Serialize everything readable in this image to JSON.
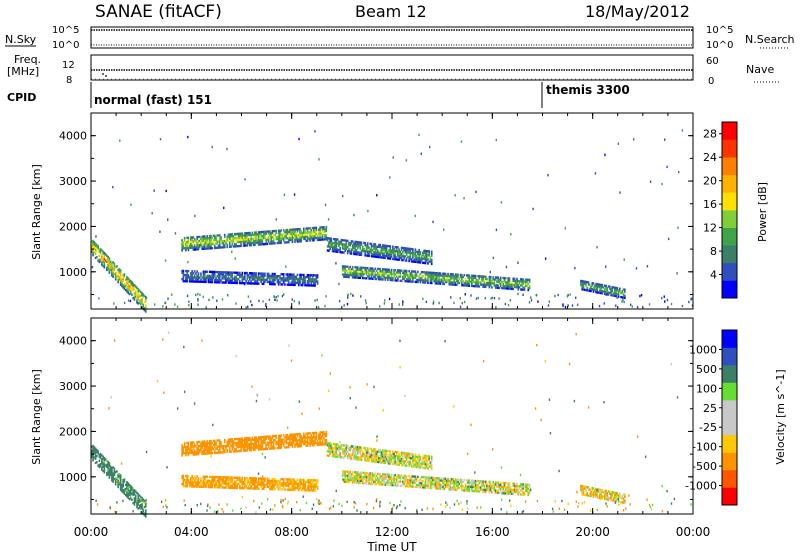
{
  "header": {
    "station": "SANAE (fitACF)",
    "beam": "Beam 12",
    "date": "18/May/2012"
  },
  "strip_noise": {
    "left_label": "N.Sky",
    "right_label": "N.Search",
    "left_ticks": [
      "10^5",
      "10^0"
    ],
    "right_ticks": [
      "10^5",
      "10^0"
    ]
  },
  "strip_freq": {
    "left_label_1": "Freq.",
    "left_label_2": "[MHz]",
    "right_label": "Nave",
    "left_ticks": [
      "12",
      "8"
    ],
    "right_ticks": [
      "60",
      "0"
    ]
  },
  "cpid": {
    "label": "CPID",
    "modes": [
      {
        "name": "normal (fast) 151",
        "start_hour": 0
      },
      {
        "name": "themis 3300",
        "start_hour": 18
      }
    ]
  },
  "colors": {
    "power_scale": [
      "#0000ff",
      "#2f4fbf",
      "#3c7f68",
      "#3fa34a",
      "#7fce3a",
      "#ffe000",
      "#ffb200",
      "#ff8000",
      "#ff3300",
      "#ff0000"
    ],
    "velocity_scale": [
      "#ff0000",
      "#ff5500",
      "#ff9400",
      "#ffc800",
      "#c8c8c8",
      "#c8c8c8",
      "#66dd33",
      "#3c7f68",
      "#2f4fbf",
      "#0000ff"
    ]
  },
  "chart_data": [
    {
      "type": "heatmap",
      "title": "",
      "xlabel": "",
      "ylabel": "Slant Range [km]",
      "xlim": [
        0,
        24
      ],
      "ylim": [
        180,
        4500
      ],
      "yticks": [
        1000,
        2000,
        3000,
        4000
      ],
      "colorbar_label": "Power [dB]",
      "colorbar_ticks": [
        "28",
        "24",
        "20",
        "16",
        "12",
        "8",
        "4"
      ],
      "colorbar_range": [
        0,
        30
      ],
      "echo_regions": [
        {
          "start_hour": 0.0,
          "end_hour": 2.2,
          "range_start_km": 1550,
          "range_end_km": 250,
          "width_km": 350,
          "peak_db": 26
        },
        {
          "start_hour": 3.6,
          "end_hour": 9.4,
          "range_start_km": 1600,
          "range_end_km": 1850,
          "width_km": 300,
          "peak_db": 20
        },
        {
          "start_hour": 3.6,
          "end_hour": 9.0,
          "range_start_km": 900,
          "range_end_km": 800,
          "width_km": 250,
          "peak_db": 10
        },
        {
          "start_hour": 9.4,
          "end_hour": 13.6,
          "range_start_km": 1600,
          "range_end_km": 1300,
          "width_km": 300,
          "peak_db": 14
        },
        {
          "start_hour": 10.0,
          "end_hour": 17.5,
          "range_start_km": 1000,
          "range_end_km": 700,
          "width_km": 250,
          "peak_db": 18
        },
        {
          "start_hour": 19.5,
          "end_hour": 21.3,
          "range_start_km": 700,
          "range_end_km": 500,
          "width_km": 200,
          "peak_db": 16
        }
      ]
    },
    {
      "type": "heatmap",
      "title": "",
      "xlabel": "Time UT",
      "ylabel": "Slant Range [km]",
      "xlim": [
        0,
        24
      ],
      "ylim": [
        180,
        4500
      ],
      "xticks": [
        "00:00",
        "04:00",
        "08:00",
        "12:00",
        "16:00",
        "20:00",
        "00:00"
      ],
      "yticks": [
        1000,
        2000,
        3000,
        4000
      ],
      "colorbar_label": "Velocity [m s^-1]",
      "colorbar_ticks": [
        "1000",
        "500",
        "100",
        "25",
        "-25",
        "-100",
        "-500",
        "-1000"
      ],
      "echo_regions": [
        {
          "start_hour": 0.0,
          "end_hour": 2.2,
          "range_start_km": 1550,
          "range_end_km": 250,
          "width_km": 350,
          "velocity": 200
        },
        {
          "start_hour": 3.6,
          "end_hour": 9.4,
          "range_start_km": 1600,
          "range_end_km": 1850,
          "width_km": 300,
          "velocity": -300
        },
        {
          "start_hour": 3.6,
          "end_hour": 9.0,
          "range_start_km": 900,
          "range_end_km": 800,
          "width_km": 250,
          "velocity": -150
        },
        {
          "start_hour": 9.4,
          "end_hour": 13.6,
          "range_start_km": 1600,
          "range_end_km": 1300,
          "width_km": 300,
          "velocity": 0
        },
        {
          "start_hour": 10.0,
          "end_hour": 17.5,
          "range_start_km": 1000,
          "range_end_km": 700,
          "width_km": 250,
          "velocity": 0
        },
        {
          "start_hour": 19.5,
          "end_hour": 21.3,
          "range_start_km": 700,
          "range_end_km": 500,
          "width_km": 200,
          "velocity": -50
        }
      ]
    }
  ]
}
